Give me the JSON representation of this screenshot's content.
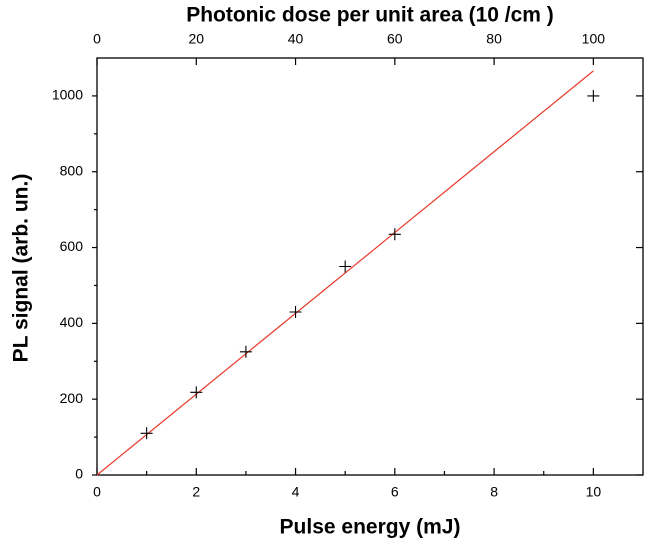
{
  "chart_data": {
    "type": "scatter",
    "x_label": "Pulse energy  (mJ)",
    "y_label": "PL signal (arb. un.)",
    "x2_label": "Photonic dose per unit area (10   /cm )",
    "xlim": [
      0,
      11
    ],
    "xticks": [
      0,
      2,
      4,
      6,
      8,
      10
    ],
    "xminorticks": [
      1,
      3,
      5,
      7,
      9
    ],
    "x2lim": [
      0,
      110
    ],
    "x2ticks": [
      0,
      20,
      40,
      60,
      80,
      100
    ],
    "ylim": [
      0,
      1100
    ],
    "yticks": [
      0,
      200,
      400,
      600,
      800,
      1000
    ],
    "yminorticks": [
      100,
      300,
      500,
      700,
      900
    ],
    "series": [
      {
        "type": "scatter",
        "color": "#000000",
        "x": [
          1,
          2,
          3,
          4,
          5,
          6,
          10
        ],
        "values": [
          110,
          218,
          325,
          430,
          550,
          635,
          1000
        ]
      },
      {
        "type": "line",
        "color": "#e8392a",
        "x": [
          0,
          10
        ],
        "values": [
          0,
          1066
        ]
      }
    ]
  }
}
